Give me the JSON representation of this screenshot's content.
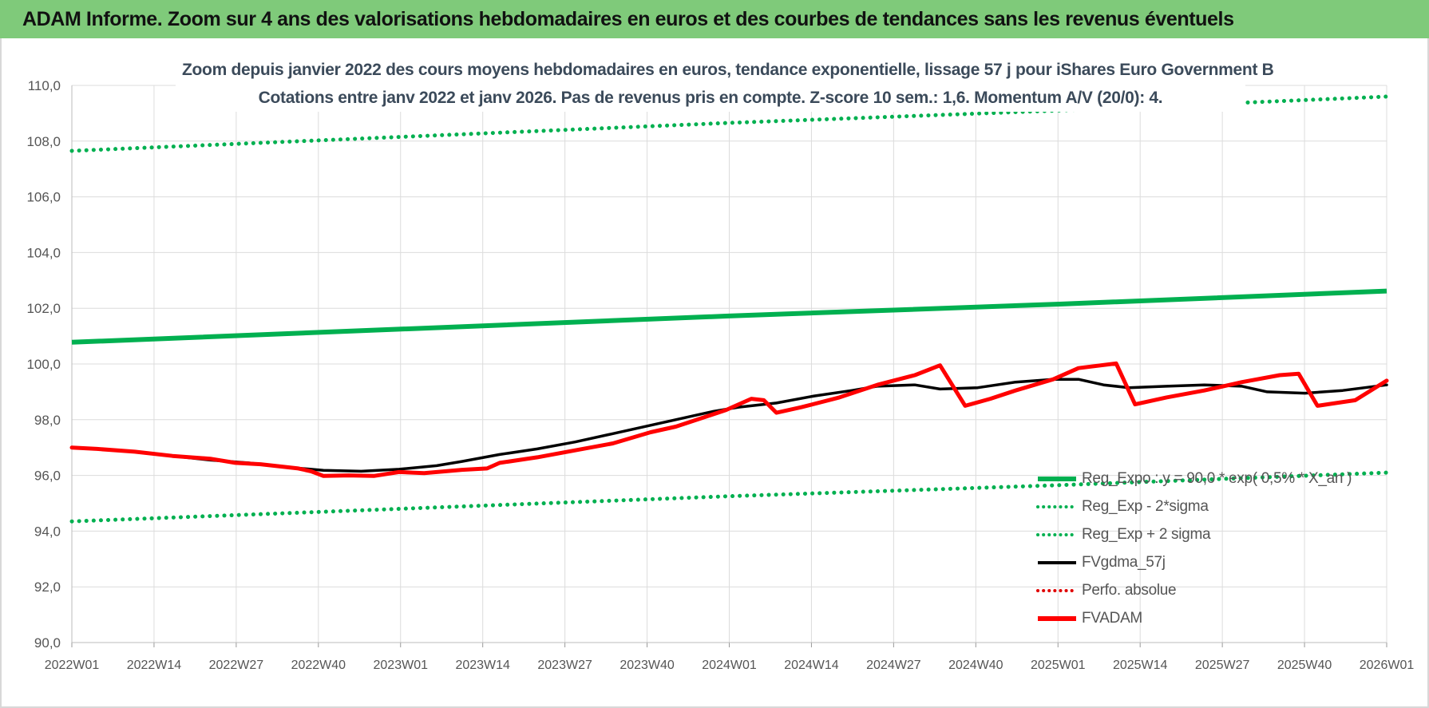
{
  "header": {
    "title": "ADAM Informe. Zoom sur 4 ans des valorisations hebdomadaires en euros et des courbes de tendances sans les revenus éventuels"
  },
  "chart_data": {
    "type": "line",
    "title": "Zoom depuis janvier 2022 des cours moyens hebdomadaires en euros, tendance exponentielle, lissage 57 j pour iShares Euro Government B",
    "subtitle": "Cotations entre janv 2022 et janv 2026. Pas de revenus pris en compte. Z-score 10 sem.: 1,6. Momentum A/V (20/0): 4.",
    "xlabel": "",
    "ylabel": "",
    "ylim": [
      90,
      110
    ],
    "yticks": [
      "110,0",
      "108,0",
      "106,0",
      "104,0",
      "102,0",
      "100,0",
      "98,0",
      "96,0",
      "94,0",
      "92,0",
      "90,0"
    ],
    "x_tick_labels": [
      "2022W01",
      "2022W14",
      "2022W27",
      "2022W40",
      "2023W01",
      "2023W14",
      "2023W27",
      "2023W40",
      "2024W01",
      "2024W14",
      "2024W27",
      "2024W40",
      "2025W01",
      "2025W14",
      "2025W27",
      "2025W40",
      "2026W01"
    ],
    "x_week_range": [
      0,
      209
    ],
    "grid": true,
    "legend_position": "bottom-right",
    "series": [
      {
        "name": "Reg_Expo : y = 90,0 * exp( 0,5% * X_an )",
        "style": "solid",
        "color": "#00b050",
        "points": [
          [
            0,
            100.78
          ],
          [
            52,
            101.25
          ],
          [
            104,
            101.72
          ],
          [
            157,
            102.15
          ],
          [
            209,
            102.62
          ]
        ]
      },
      {
        "name": "Reg_Exp - 2*sigma",
        "style": "dotted",
        "color": "#00b050",
        "points": [
          [
            0,
            94.35
          ],
          [
            52,
            94.8
          ],
          [
            104,
            95.25
          ],
          [
            157,
            95.65
          ],
          [
            209,
            96.1
          ]
        ]
      },
      {
        "name": "Reg_Exp + 2 sigma",
        "style": "dotted",
        "color": "#00b050",
        "points": [
          [
            0,
            107.65
          ],
          [
            52,
            108.15
          ],
          [
            104,
            108.65
          ],
          [
            157,
            109.1
          ],
          [
            209,
            109.6
          ]
        ]
      },
      {
        "name": "FVgdma_57j",
        "style": "solid",
        "color": "#000000",
        "points": [
          [
            0,
            97.0
          ],
          [
            4,
            96.95
          ],
          [
            10,
            96.85
          ],
          [
            16,
            96.7
          ],
          [
            22,
            96.55
          ],
          [
            28,
            96.45
          ],
          [
            34,
            96.3
          ],
          [
            40,
            96.18
          ],
          [
            46,
            96.15
          ],
          [
            52,
            96.22
          ],
          [
            58,
            96.35
          ],
          [
            62,
            96.5
          ],
          [
            68,
            96.75
          ],
          [
            74,
            96.95
          ],
          [
            80,
            97.2
          ],
          [
            86,
            97.5
          ],
          [
            90,
            97.7
          ],
          [
            96,
            98.0
          ],
          [
            102,
            98.3
          ],
          [
            106,
            98.45
          ],
          [
            112,
            98.6
          ],
          [
            118,
            98.85
          ],
          [
            124,
            99.05
          ],
          [
            128,
            99.2
          ],
          [
            134,
            99.25
          ],
          [
            138,
            99.1
          ],
          [
            144,
            99.15
          ],
          [
            150,
            99.35
          ],
          [
            156,
            99.45
          ],
          [
            160,
            99.45
          ],
          [
            164,
            99.25
          ],
          [
            168,
            99.15
          ],
          [
            174,
            99.2
          ],
          [
            180,
            99.25
          ],
          [
            186,
            99.2
          ],
          [
            190,
            99.0
          ],
          [
            196,
            98.95
          ],
          [
            202,
            99.05
          ],
          [
            209,
            99.25
          ]
        ]
      },
      {
        "name": "Perfo. absolue",
        "style": "dotted",
        "color": "#e00000",
        "points": []
      },
      {
        "name": "FVADAM",
        "style": "solid",
        "color": "#ff0000",
        "points": [
          [
            0,
            97.0
          ],
          [
            4,
            96.95
          ],
          [
            10,
            96.85
          ],
          [
            16,
            96.7
          ],
          [
            22,
            96.6
          ],
          [
            26,
            96.45
          ],
          [
            30,
            96.4
          ],
          [
            36,
            96.25
          ],
          [
            38,
            96.15
          ],
          [
            40,
            95.98
          ],
          [
            44,
            96.0
          ],
          [
            48,
            95.98
          ],
          [
            52,
            96.12
          ],
          [
            56,
            96.08
          ],
          [
            62,
            96.2
          ],
          [
            66,
            96.25
          ],
          [
            68,
            96.45
          ],
          [
            74,
            96.65
          ],
          [
            80,
            96.9
          ],
          [
            86,
            97.15
          ],
          [
            92,
            97.55
          ],
          [
            96,
            97.75
          ],
          [
            100,
            98.05
          ],
          [
            104,
            98.35
          ],
          [
            108,
            98.75
          ],
          [
            110,
            98.7
          ],
          [
            112,
            98.25
          ],
          [
            116,
            98.45
          ],
          [
            122,
            98.8
          ],
          [
            128,
            99.25
          ],
          [
            134,
            99.6
          ],
          [
            138,
            99.95
          ],
          [
            142,
            98.5
          ],
          [
            146,
            98.75
          ],
          [
            150,
            99.05
          ],
          [
            156,
            99.45
          ],
          [
            160,
            99.85
          ],
          [
            166,
            100.02
          ],
          [
            169,
            98.55
          ],
          [
            174,
            98.8
          ],
          [
            180,
            99.05
          ],
          [
            186,
            99.35
          ],
          [
            192,
            99.6
          ],
          [
            195,
            99.65
          ],
          [
            198,
            98.5
          ],
          [
            204,
            98.7
          ],
          [
            209,
            99.4
          ]
        ]
      }
    ]
  }
}
